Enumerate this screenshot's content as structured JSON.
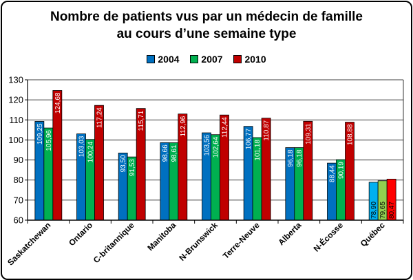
{
  "chart_data": {
    "type": "bar",
    "title_lines": [
      "Nombre de patients vus par un médecin de famille",
      "au cours d’une semaine type"
    ],
    "categories": [
      "Saskatchewan",
      "Ontario",
      "C-britannique",
      "Manitoba",
      "N-Brunswick",
      "Terre-Neuve",
      "Alberta",
      "N-Écosse",
      "Québec"
    ],
    "series": [
      {
        "name": "2004",
        "color": "#0070C0",
        "values": [
          109.25,
          103.03,
          93.5,
          98.66,
          103.56,
          106.77,
          96.18,
          88.44,
          78.9
        ],
        "labels": [
          "109,25",
          "103,03",
          "93,50",
          "98,66",
          "103,56",
          "106,77",
          "96,18",
          "88,44",
          "78,90"
        ]
      },
      {
        "name": "2007",
        "color": "#00B050",
        "values": [
          105.96,
          100.24,
          91.53,
          98.61,
          102.64,
          101.18,
          96.18,
          90.19,
          79.65
        ],
        "labels": [
          "105,96",
          "100,24",
          "91,53",
          "98,61",
          "102,64",
          "101,18",
          "96,18",
          "90,19",
          "79,65"
        ]
      },
      {
        "name": "2010",
        "color": "#C00000",
        "values": [
          124.68,
          117.24,
          115.71,
          112.96,
          112.44,
          110.87,
          109.31,
          108.88,
          80.47
        ],
        "labels": [
          "124,68",
          "117,24",
          "115,71",
          "112,96",
          "112,44",
          "110,87",
          "109,31",
          "108,88",
          "80,47"
        ]
      }
    ],
    "highlight_category": "Québec",
    "highlight_colors": [
      "#00B0F0",
      "#92D050",
      "#FF0000"
    ],
    "ylim": [
      60,
      130
    ],
    "yticks": [
      60,
      70,
      80,
      90,
      100,
      110,
      120,
      130
    ],
    "grid": true,
    "legend_position": "top-center"
  }
}
